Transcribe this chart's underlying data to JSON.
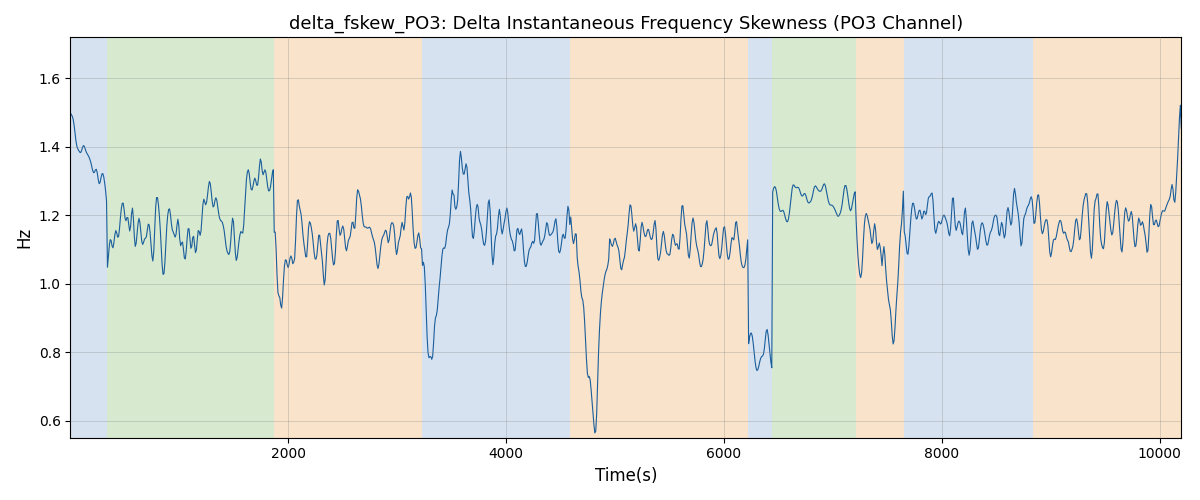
{
  "title": "delta_fskew_PO3: Delta Instantaneous Frequency Skewness (PO3 Channel)",
  "xlabel": "Time(s)",
  "ylabel": "Hz",
  "xlim": [
    0,
    10200
  ],
  "ylim": [
    0.55,
    1.72
  ],
  "line_color": "#1a5e9c",
  "line_width": 0.8,
  "background_color": "#ffffff",
  "background_bands": [
    {
      "xmin": 0,
      "xmax": 340,
      "color": "#aec6e0",
      "alpha": 0.5
    },
    {
      "xmin": 340,
      "xmax": 1870,
      "color": "#b0d4a0",
      "alpha": 0.5
    },
    {
      "xmin": 1870,
      "xmax": 3230,
      "color": "#f5c896",
      "alpha": 0.5
    },
    {
      "xmin": 3230,
      "xmax": 4590,
      "color": "#aec6e0",
      "alpha": 0.5
    },
    {
      "xmin": 4590,
      "xmax": 6220,
      "color": "#f5c896",
      "alpha": 0.5
    },
    {
      "xmin": 6220,
      "xmax": 6440,
      "color": "#aec6e0",
      "alpha": 0.5
    },
    {
      "xmin": 6440,
      "xmax": 7210,
      "color": "#b0d4a0",
      "alpha": 0.5
    },
    {
      "xmin": 7210,
      "xmax": 7650,
      "color": "#f5c896",
      "alpha": 0.5
    },
    {
      "xmin": 7650,
      "xmax": 8840,
      "color": "#aec6e0",
      "alpha": 0.5
    },
    {
      "xmin": 8840,
      "xmax": 10200,
      "color": "#f5c896",
      "alpha": 0.5
    }
  ],
  "seed": 42,
  "n_points": 1200,
  "t_start": 0,
  "t_end": 10200
}
